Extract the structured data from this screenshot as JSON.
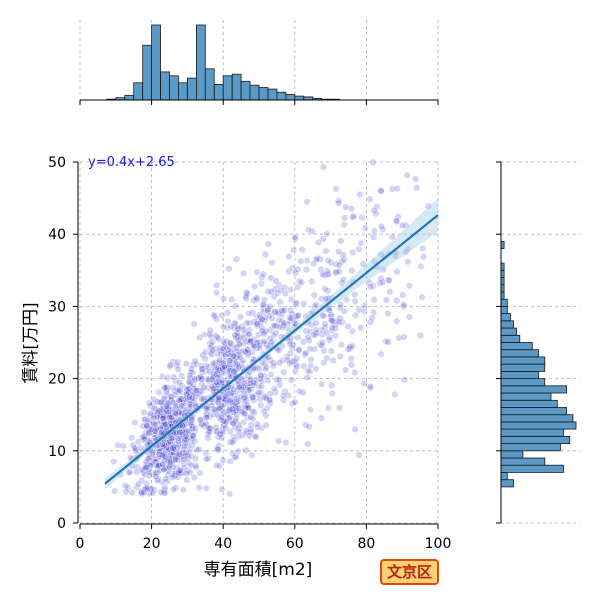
{
  "chart_data": {
    "type": "scatter",
    "xlabel": "専有面積[m2]",
    "ylabel": "賃料[万円]",
    "xlim": [
      0,
      100
    ],
    "ylim": [
      0,
      50
    ],
    "x_ticks": [
      "0",
      "20",
      "40",
      "60",
      "80",
      "100"
    ],
    "y_ticks": [
      "0",
      "10",
      "20",
      "30",
      "40",
      "50"
    ],
    "grid": true,
    "regression": {
      "label": "y=0.4x+2.65",
      "slope": 0.4,
      "intercept": 2.65,
      "x_range": [
        7,
        100
      ],
      "color": "#1f77b4"
    },
    "point_color": "#3a3ad0",
    "hist_color": "#5b9ac6",
    "x_marginal_hist": {
      "bin_width": 2.5,
      "start": 7.5,
      "counts": [
        1,
        3,
        6,
        22,
        70,
        96,
        36,
        31,
        22,
        28,
        96,
        40,
        20,
        31,
        33,
        24,
        19,
        16,
        14,
        10,
        7,
        5,
        4,
        2,
        1,
        1
      ]
    },
    "y_marginal_hist": {
      "bin_width": 1,
      "start": 5,
      "counts": [
        4,
        2,
        20,
        14,
        7,
        19,
        22,
        20,
        24,
        23,
        21,
        18,
        16,
        21,
        14,
        12,
        14,
        14,
        12,
        10,
        6,
        5,
        4,
        3,
        2,
        2,
        1,
        1,
        1,
        1,
        1,
        0,
        0,
        1,
        0,
        0,
        0,
        0,
        0,
        0,
        0,
        0,
        0,
        0,
        0
      ]
    }
  },
  "badge": {
    "label": "文京区"
  }
}
